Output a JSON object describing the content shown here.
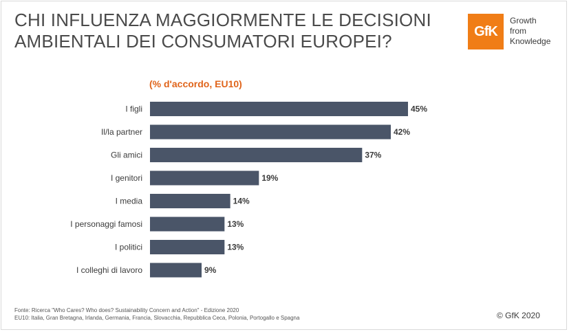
{
  "header": {
    "title_line1": "CHI INFLUENZA MAGGIORMENTE LE DECISIONI",
    "title_line2": "AMBIENTALI DEI CONSUMATORI EUROPEI?",
    "logo_text": "GfK",
    "tagline_line1": "Growth",
    "tagline_line2": "from",
    "tagline_line3": "Knowledge"
  },
  "chart_data": {
    "type": "bar",
    "orientation": "horizontal",
    "title": "(% d'accordo, EU10)",
    "categories": [
      "I figli",
      "Il/la partner",
      "Gli amici",
      "I genitori",
      "I media",
      "I personaggi famosi",
      "I politici",
      "I colleghi di lavoro"
    ],
    "values": [
      45,
      42,
      37,
      19,
      14,
      13,
      13,
      9
    ],
    "value_labels": [
      "45%",
      "42%",
      "37%",
      "19%",
      "14%",
      "13%",
      "13%",
      "9%"
    ],
    "xlim": [
      0,
      45
    ],
    "bar_color": "#4a5568"
  },
  "footer": {
    "source_line1": "Fonte: Ricerca \"Who Cares? Who does? Sustainability Concern and Action\" - Edizione 2020",
    "source_line2": "EU10: Italia, Gran Bretagna, Irlanda, Germania, Francia, Slovacchia, Repubblica Ceca, Polonia, Portogallo e Spagna",
    "copyright": "© GfK 2020"
  },
  "colors": {
    "accent": "#e0641a",
    "logo": "#f07d16",
    "bar": "#4a5568"
  }
}
